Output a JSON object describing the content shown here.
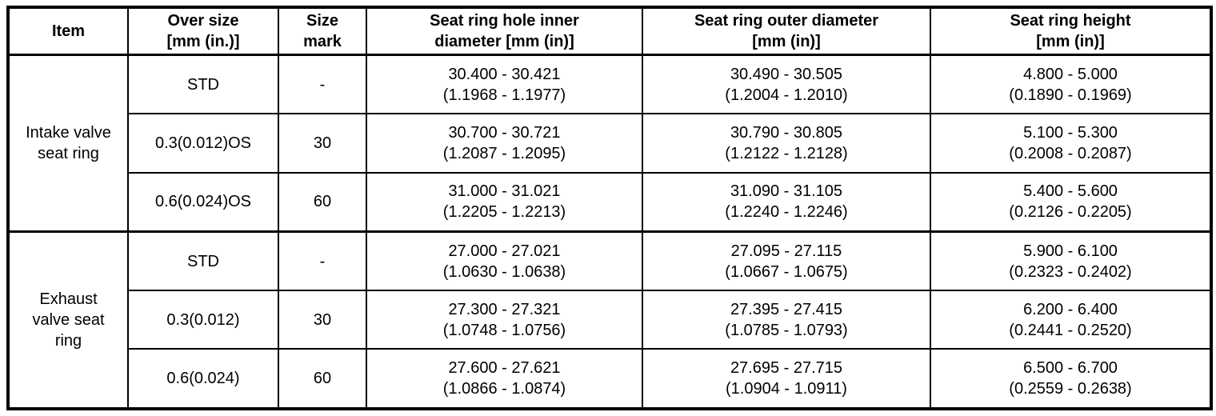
{
  "table": {
    "headers": [
      "Item",
      "Over size\n[mm (in.)]",
      "Size\nmark",
      "Seat ring hole inner\ndiameter [mm (in)]",
      "Seat ring outer diameter\n[mm (in)]",
      "Seat ring height\n[mm (in)]"
    ],
    "groups": [
      {
        "label": "Intake valve\nseat ring"
      },
      {
        "label": "Exhaust\nvalve seat\nring"
      }
    ],
    "rows": [
      {
        "over_size": "STD",
        "size_mark": "-",
        "inner_diameter": "30.400 - 30.421\n(1.1968 - 1.1977)",
        "outer_diameter": "30.490 - 30.505\n(1.2004 - 1.2010)",
        "height": "4.800 - 5.000\n(0.1890 - 0.1969)"
      },
      {
        "over_size": "0.3(0.012)OS",
        "size_mark": "30",
        "inner_diameter": "30.700 - 30.721\n(1.2087 - 1.2095)",
        "outer_diameter": "30.790 - 30.805\n(1.2122 - 1.2128)",
        "height": "5.100 - 5.300\n(0.2008 - 0.2087)"
      },
      {
        "over_size": "0.6(0.024)OS",
        "size_mark": "60",
        "inner_diameter": "31.000 - 31.021\n(1.2205 - 1.2213)",
        "outer_diameter": "31.090 - 31.105\n(1.2240 - 1.2246)",
        "height": "5.400 - 5.600\n(0.2126 - 0.2205)"
      },
      {
        "over_size": "STD",
        "size_mark": "-",
        "inner_diameter": "27.000 - 27.021\n(1.0630 - 1.0638)",
        "outer_diameter": "27.095 - 27.115\n(1.0667 - 1.0675)",
        "height": "5.900 - 6.100\n(0.2323 - 0.2402)"
      },
      {
        "over_size": "0.3(0.012)",
        "size_mark": "30",
        "inner_diameter": "27.300 - 27.321\n(1.0748 - 1.0756)",
        "outer_diameter": "27.395 - 27.415\n(1.0785 - 1.0793)",
        "height": "6.200 - 6.400\n(0.2441 - 0.2520)"
      },
      {
        "over_size": "0.6(0.024)",
        "size_mark": "60",
        "inner_diameter": "27.600 - 27.621\n(1.0866 - 1.0874)",
        "outer_diameter": "27.695 - 27.715\n(1.0904 - 1.0911)",
        "height": "6.500 - 6.700\n(0.2559 - 0.2638)"
      }
    ]
  }
}
